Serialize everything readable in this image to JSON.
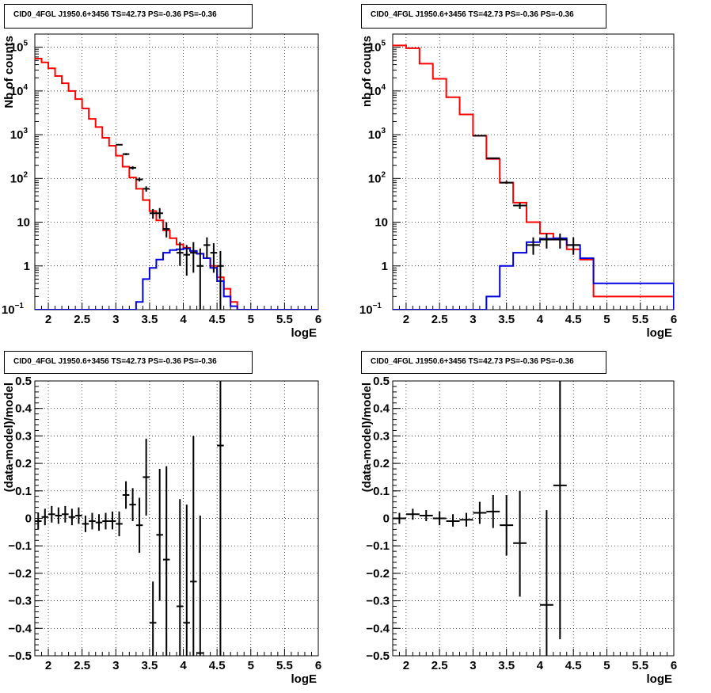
{
  "chart_data": [
    {
      "type": "line",
      "title": "CID0_4FGL J1950.6+3456 TS=42.73 PS=-0.36 PS=-0.36",
      "xlabel": "logE",
      "ylabel": "Nb of counts",
      "xlim": [
        1.8,
        6.0
      ],
      "ylim": [
        0.1,
        200000
      ],
      "log_y": true,
      "grid": "dotted",
      "x_ticks": [
        2,
        2.5,
        3,
        3.5,
        4,
        4.5,
        5,
        5.5,
        6
      ],
      "y_ticks": [
        {
          "value": 0.1,
          "base": "10",
          "exp": "−1"
        },
        {
          "value": 1,
          "base": "1",
          "exp": ""
        },
        {
          "value": 10,
          "base": "10",
          "exp": ""
        },
        {
          "value": 100,
          "base": "10",
          "exp": "2"
        },
        {
          "value": 1000,
          "base": "10",
          "exp": "3"
        },
        {
          "value": 10000,
          "base": "10",
          "exp": "4"
        },
        {
          "value": 100000,
          "base": "10",
          "exp": "5"
        }
      ],
      "series": [
        {
          "kind": "step",
          "color": "#ff0000",
          "edges": [
            1.8,
            1.9,
            2.0,
            2.1,
            2.2,
            2.3,
            2.4,
            2.5,
            2.6,
            2.7,
            2.8,
            2.9,
            3.0,
            3.1,
            3.2,
            3.3,
            3.4,
            3.5,
            3.6,
            3.7,
            3.8,
            3.9,
            4.0,
            4.1,
            4.2,
            4.3,
            4.4,
            4.5,
            4.6,
            4.7,
            4.8,
            4.9,
            6.0
          ],
          "values": [
            55000,
            45000,
            33000,
            22000,
            15000,
            10000,
            6500,
            4000,
            2300,
            1500,
            850,
            560,
            330,
            185,
            105,
            58,
            32,
            18,
            11,
            6.5,
            4.3,
            3.1,
            2.6,
            2.2,
            1.9,
            1.5,
            1.0,
            0.55,
            0.3,
            0.15,
            0.1,
            0.1
          ]
        },
        {
          "kind": "step",
          "color": "#0000dd",
          "edges": [
            1.8,
            3.3,
            3.4,
            3.5,
            3.6,
            3.7,
            3.8,
            3.9,
            4.0,
            4.1,
            4.2,
            4.3,
            4.4,
            4.5,
            4.6,
            4.7,
            4.8,
            6.0
          ],
          "values": [
            0.1,
            0.15,
            0.5,
            0.9,
            1.4,
            2.0,
            2.3,
            2.4,
            2.5,
            2.2,
            1.9,
            1.5,
            0.9,
            0.45,
            0.2,
            0.12,
            0.1
          ]
        },
        {
          "kind": "errorbar",
          "color": "#000000",
          "points": [
            {
              "x": 3.05,
              "xerr": 0.05,
              "y": 590,
              "ylo": 590,
              "yhi": 590
            },
            {
              "x": 3.15,
              "xerr": 0.05,
              "y": 360,
              "ylo": 340,
              "yhi": 380
            },
            {
              "x": 3.25,
              "xerr": 0.05,
              "y": 175,
              "ylo": 160,
              "yhi": 190
            },
            {
              "x": 3.35,
              "xerr": 0.05,
              "y": 95,
              "ylo": 85,
              "yhi": 105
            },
            {
              "x": 3.45,
              "xerr": 0.05,
              "y": 58,
              "ylo": 50,
              "yhi": 66
            },
            {
              "x": 3.55,
              "xerr": 0.05,
              "y": 16,
              "ylo": 12,
              "yhi": 20
            },
            {
              "x": 3.65,
              "xerr": 0.05,
              "y": 16,
              "ylo": 12,
              "yhi": 21
            },
            {
              "x": 3.75,
              "xerr": 0.05,
              "y": 7,
              "ylo": 4.5,
              "yhi": 10
            },
            {
              "x": 3.95,
              "xerr": 0.05,
              "y": 2,
              "ylo": 1.0,
              "yhi": 3.5
            },
            {
              "x": 4.05,
              "xerr": 0.05,
              "y": 1.8,
              "ylo": 0.6,
              "yhi": 3.0
            },
            {
              "x": 4.15,
              "xerr": 0.05,
              "y": 2,
              "ylo": 0.7,
              "yhi": 3.5
            },
            {
              "x": 4.25,
              "xerr": 0.05,
              "y": 1,
              "ylo": 0.1,
              "yhi": 2.5
            },
            {
              "x": 4.35,
              "xerr": 0.05,
              "y": 3,
              "ylo": 1.5,
              "yhi": 4.5
            },
            {
              "x": 4.45,
              "xerr": 0.05,
              "y": 2,
              "ylo": 0.7,
              "yhi": 3.3
            },
            {
              "x": 4.55,
              "xerr": 0.05,
              "y": 1,
              "ylo": 0.1,
              "yhi": 2.2
            }
          ]
        }
      ]
    },
    {
      "type": "line",
      "title": "CID0_4FGL J1950.6+3456 TS=42.73 PS=-0.36 PS=-0.36",
      "xlabel": "logE",
      "ylabel": "nb of counts",
      "xlim": [
        1.8,
        6.0
      ],
      "ylim": [
        0.1,
        200000
      ],
      "log_y": true,
      "grid": "dotted",
      "x_ticks": [
        2,
        2.5,
        3,
        3.5,
        4,
        4.5,
        5,
        5.5,
        6
      ],
      "y_ticks": [
        {
          "value": 0.1,
          "base": "10",
          "exp": "−1"
        },
        {
          "value": 1,
          "base": "1",
          "exp": ""
        },
        {
          "value": 10,
          "base": "10",
          "exp": ""
        },
        {
          "value": 100,
          "base": "10",
          "exp": "2"
        },
        {
          "value": 1000,
          "base": "10",
          "exp": "3"
        },
        {
          "value": 10000,
          "base": "10",
          "exp": "4"
        },
        {
          "value": 100000,
          "base": "10",
          "exp": "5"
        }
      ],
      "series": [
        {
          "kind": "step",
          "color": "#ff0000",
          "edges": [
            1.8,
            2.0,
            2.2,
            2.4,
            2.6,
            2.8,
            3.0,
            3.2,
            3.4,
            3.6,
            3.8,
            4.0,
            4.2,
            4.4,
            4.6,
            4.8,
            6.0
          ],
          "values": [
            110000,
            95000,
            42000,
            19000,
            7200,
            2900,
            950,
            280,
            80,
            28,
            10,
            5.5,
            4.0,
            2.4,
            1.4,
            0.2
          ],
          "tail": [
            4.8,
            5.0,
            0.2
          ]
        },
        {
          "kind": "step",
          "color": "#0000dd",
          "edges": [
            1.8,
            3.2,
            3.4,
            3.6,
            3.8,
            4.0,
            4.2,
            4.4,
            4.6,
            4.8,
            6.0
          ],
          "values": [
            0.1,
            0.2,
            1.0,
            2.0,
            3.5,
            4.2,
            4.3,
            3.0,
            1.5,
            0.4,
            0.1
          ]
        },
        {
          "kind": "errorbar",
          "color": "#000000",
          "points": [
            {
              "x": 3.1,
              "xerr": 0.1,
              "y": 950,
              "ylo": 950,
              "yhi": 950
            },
            {
              "x": 3.3,
              "xerr": 0.1,
              "y": 290,
              "ylo": 280,
              "yhi": 300
            },
            {
              "x": 3.5,
              "xerr": 0.1,
              "y": 80,
              "ylo": 75,
              "yhi": 88
            },
            {
              "x": 3.7,
              "xerr": 0.1,
              "y": 24,
              "ylo": 20,
              "yhi": 28
            },
            {
              "x": 3.9,
              "xerr": 0.1,
              "y": 3,
              "ylo": 1.8,
              "yhi": 4.5
            },
            {
              "x": 4.1,
              "xerr": 0.1,
              "y": 4,
              "ylo": 2.5,
              "yhi": 5.5
            },
            {
              "x": 4.3,
              "xerr": 0.1,
              "y": 4,
              "ylo": 2.5,
              "yhi": 5.5
            },
            {
              "x": 4.5,
              "xerr": 0.1,
              "y": 3,
              "ylo": 1.8,
              "yhi": 4.5
            }
          ]
        }
      ]
    },
    {
      "type": "scatter",
      "title": "CID0_4FGL J1950.6+3456 TS=42.73 PS=-0.36 PS=-0.36",
      "xlabel": "logE",
      "ylabel": "(data-model)/model",
      "xlim": [
        1.8,
        6.0
      ],
      "ylim": [
        -0.5,
        0.5
      ],
      "grid": "dotted",
      "x_ticks": [
        2,
        2.5,
        3,
        3.5,
        4,
        4.5,
        5,
        5.5,
        6
      ],
      "y_ticks": [
        -0.5,
        -0.4,
        -0.3,
        -0.2,
        -0.1,
        0,
        0.1,
        0.2,
        0.3,
        0.4,
        0.5
      ],
      "series": [
        {
          "kind": "errorbar",
          "color": "#000000",
          "points": [
            {
              "x": 1.85,
              "xerr": 0.05,
              "y": -0.01,
              "ylo": -0.04,
              "yhi": 0.02
            },
            {
              "x": 1.95,
              "xerr": 0.05,
              "y": 0.005,
              "ylo": -0.025,
              "yhi": 0.035
            },
            {
              "x": 2.05,
              "xerr": 0.05,
              "y": 0.015,
              "ylo": -0.015,
              "yhi": 0.045
            },
            {
              "x": 2.15,
              "xerr": 0.05,
              "y": 0.01,
              "ylo": -0.02,
              "yhi": 0.04
            },
            {
              "x": 2.25,
              "xerr": 0.05,
              "y": 0.015,
              "ylo": -0.015,
              "yhi": 0.045
            },
            {
              "x": 2.35,
              "xerr": 0.05,
              "y": 0.005,
              "ylo": -0.025,
              "yhi": 0.035
            },
            {
              "x": 2.45,
              "xerr": 0.05,
              "y": 0.01,
              "ylo": -0.02,
              "yhi": 0.04
            },
            {
              "x": 2.55,
              "xerr": 0.05,
              "y": -0.02,
              "ylo": -0.05,
              "yhi": 0.01
            },
            {
              "x": 2.65,
              "xerr": 0.05,
              "y": -0.01,
              "ylo": -0.04,
              "yhi": 0.02
            },
            {
              "x": 2.75,
              "xerr": 0.05,
              "y": -0.015,
              "ylo": -0.045,
              "yhi": 0.015
            },
            {
              "x": 2.85,
              "xerr": 0.05,
              "y": -0.01,
              "ylo": -0.04,
              "yhi": 0.02
            },
            {
              "x": 2.95,
              "xerr": 0.05,
              "y": -0.01,
              "ylo": -0.04,
              "yhi": 0.025
            },
            {
              "x": 3.05,
              "xerr": 0.05,
              "y": -0.02,
              "ylo": -0.065,
              "yhi": 0.025
            },
            {
              "x": 3.15,
              "xerr": 0.05,
              "y": 0.085,
              "ylo": 0.035,
              "yhi": 0.135
            },
            {
              "x": 3.25,
              "xerr": 0.05,
              "y": 0.05,
              "ylo": -0.01,
              "yhi": 0.11
            },
            {
              "x": 3.35,
              "xerr": 0.05,
              "y": -0.025,
              "ylo": -0.125,
              "yhi": 0.075
            },
            {
              "x": 3.45,
              "xerr": 0.05,
              "y": 0.15,
              "ylo": 0.01,
              "yhi": 0.29
            },
            {
              "x": 3.55,
              "xerr": 0.05,
              "y": -0.38,
              "ylo": -0.5,
              "yhi": -0.23
            },
            {
              "x": 3.65,
              "xerr": 0.05,
              "y": -0.06,
              "ylo": -0.3,
              "yhi": 0.18
            },
            {
              "x": 3.75,
              "xerr": 0.05,
              "y": -0.15,
              "ylo": -0.5,
              "yhi": 0.19
            },
            {
              "x": 3.95,
              "xerr": 0.05,
              "y": -0.32,
              "ylo": -0.5,
              "yhi": 0.07
            },
            {
              "x": 4.05,
              "xerr": 0.05,
              "y": -0.38,
              "ylo": -0.5,
              "yhi": 0.05
            },
            {
              "x": 4.15,
              "xerr": 0.05,
              "y": -0.23,
              "ylo": -0.5,
              "yhi": 0.3
            },
            {
              "x": 4.25,
              "xerr": 0.05,
              "y": -0.49,
              "ylo": -0.5,
              "yhi": 0.01
            },
            {
              "x": 4.55,
              "xerr": 0.05,
              "y": 0.265,
              "ylo": -0.5,
              "yhi": 0.5
            }
          ]
        }
      ]
    },
    {
      "type": "scatter",
      "title": "CID0_4FGL J1950.6+3456 TS=42.73 PS=-0.36 PS=-0.36",
      "xlabel": "logE",
      "ylabel": "(data-model)/model",
      "xlim": [
        1.8,
        6.0
      ],
      "ylim": [
        -0.5,
        0.5
      ],
      "grid": "dotted",
      "x_ticks": [
        2,
        2.5,
        3,
        3.5,
        4,
        4.5,
        5,
        5.5,
        6
      ],
      "y_ticks": [
        -0.5,
        -0.4,
        -0.3,
        -0.2,
        -0.1,
        0,
        0.1,
        0.2,
        0.3,
        0.4,
        0.5
      ],
      "series": [
        {
          "kind": "errorbar",
          "color": "#000000",
          "points": [
            {
              "x": 1.9,
              "xerr": 0.1,
              "y": 0.0,
              "ylo": -0.02,
              "yhi": 0.02
            },
            {
              "x": 2.1,
              "xerr": 0.1,
              "y": 0.015,
              "ylo": -0.005,
              "yhi": 0.035
            },
            {
              "x": 2.3,
              "xerr": 0.1,
              "y": 0.01,
              "ylo": -0.01,
              "yhi": 0.03
            },
            {
              "x": 2.5,
              "xerr": 0.1,
              "y": 0.0,
              "ylo": -0.025,
              "yhi": 0.025
            },
            {
              "x": 2.7,
              "xerr": 0.1,
              "y": -0.01,
              "ylo": -0.03,
              "yhi": 0.015
            },
            {
              "x": 2.9,
              "xerr": 0.1,
              "y": -0.005,
              "ylo": -0.03,
              "yhi": 0.02
            },
            {
              "x": 3.1,
              "xerr": 0.1,
              "y": 0.02,
              "ylo": -0.02,
              "yhi": 0.06
            },
            {
              "x": 3.3,
              "xerr": 0.1,
              "y": 0.025,
              "ylo": -0.035,
              "yhi": 0.085
            },
            {
              "x": 3.5,
              "xerr": 0.1,
              "y": -0.025,
              "ylo": -0.135,
              "yhi": 0.085
            },
            {
              "x": 3.7,
              "xerr": 0.1,
              "y": -0.09,
              "ylo": -0.285,
              "yhi": 0.1
            },
            {
              "x": 4.1,
              "xerr": 0.1,
              "y": -0.315,
              "ylo": -0.5,
              "yhi": 0.03
            },
            {
              "x": 4.3,
              "xerr": 0.1,
              "y": 0.12,
              "ylo": -0.44,
              "yhi": 0.5
            }
          ]
        }
      ]
    }
  ]
}
